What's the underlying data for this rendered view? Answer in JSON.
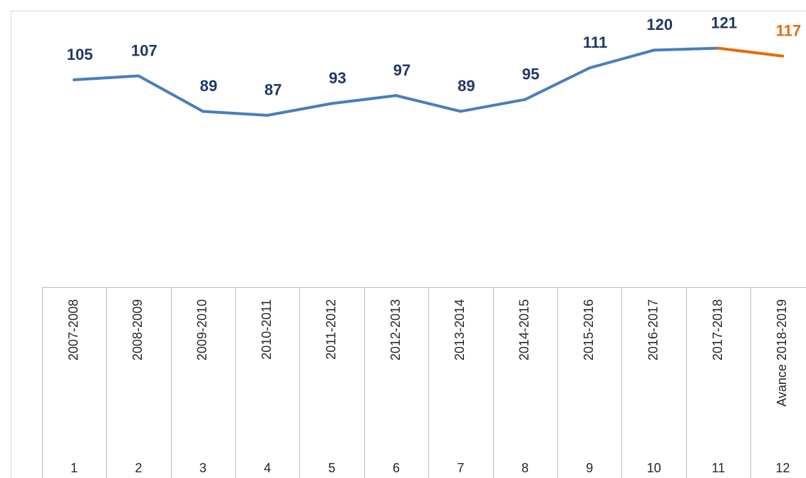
{
  "chart_data": {
    "type": "line",
    "categories": [
      "2007-2008",
      "2008-2009",
      "2009-2010",
      "2010-2011",
      "2011-2012",
      "2012-2013",
      "2013-2014",
      "2014-2015",
      "2015-2016",
      "2016-2017",
      "2017-2018",
      "Avance 2018-2019"
    ],
    "category_numbers": [
      1,
      2,
      3,
      4,
      5,
      6,
      7,
      8,
      9,
      10,
      11,
      12
    ],
    "values": [
      105,
      107,
      89,
      87,
      93,
      97,
      89,
      95,
      111,
      120,
      121,
      117
    ],
    "point_colors": [
      "#4a7ebb",
      "#4a7ebb",
      "#4a7ebb",
      "#4a7ebb",
      "#4a7ebb",
      "#4a7ebb",
      "#4a7ebb",
      "#4a7ebb",
      "#4a7ebb",
      "#4a7ebb",
      "#4a7ebb",
      "#e46c0a"
    ],
    "label_colors": [
      "#1f3864",
      "#1f3864",
      "#1f3864",
      "#1f3864",
      "#1f3864",
      "#1f3864",
      "#1f3864",
      "#1f3864",
      "#1f3864",
      "#1f3864",
      "#1f3864",
      "#e46c0a"
    ],
    "ylim": [
      0,
      140
    ]
  }
}
